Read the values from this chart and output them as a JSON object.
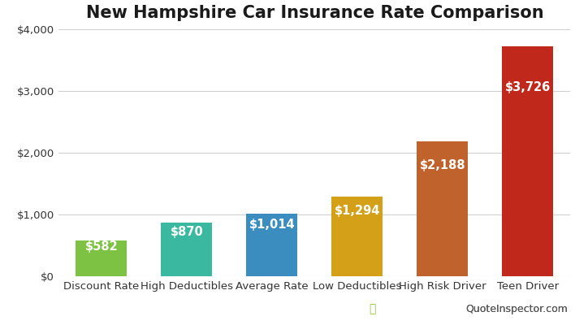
{
  "title": "New Hampshire Car Insurance Rate Comparison",
  "categories": [
    "Discount Rate",
    "High Deductibles",
    "Average Rate",
    "Low Deductibles",
    "High Risk Driver",
    "Teen Driver"
  ],
  "values": [
    582,
    870,
    1014,
    1294,
    2188,
    3726
  ],
  "labels": [
    "$582",
    "$870",
    "$1,014",
    "$1,294",
    "$2,188",
    "$3,726"
  ],
  "bar_colors": [
    "#7DC242",
    "#3BB8A0",
    "#3A8DBE",
    "#D4A017",
    "#C0622B",
    "#C0281C"
  ],
  "ylim": [
    0,
    4000
  ],
  "yticks": [
    0,
    1000,
    2000,
    3000,
    4000
  ],
  "ytick_labels": [
    "$0",
    "$1,000",
    "$2,000",
    "$3,000",
    "$4,000"
  ],
  "background_color": "#ffffff",
  "grid_color": "#d0d0d0",
  "label_color": "#ffffff",
  "label_fontsize": 10.5,
  "title_fontsize": 15,
  "watermark_text": "QuoteInspector.com",
  "watermark_green": "#8DC63F",
  "watermark_gray": "#555555"
}
